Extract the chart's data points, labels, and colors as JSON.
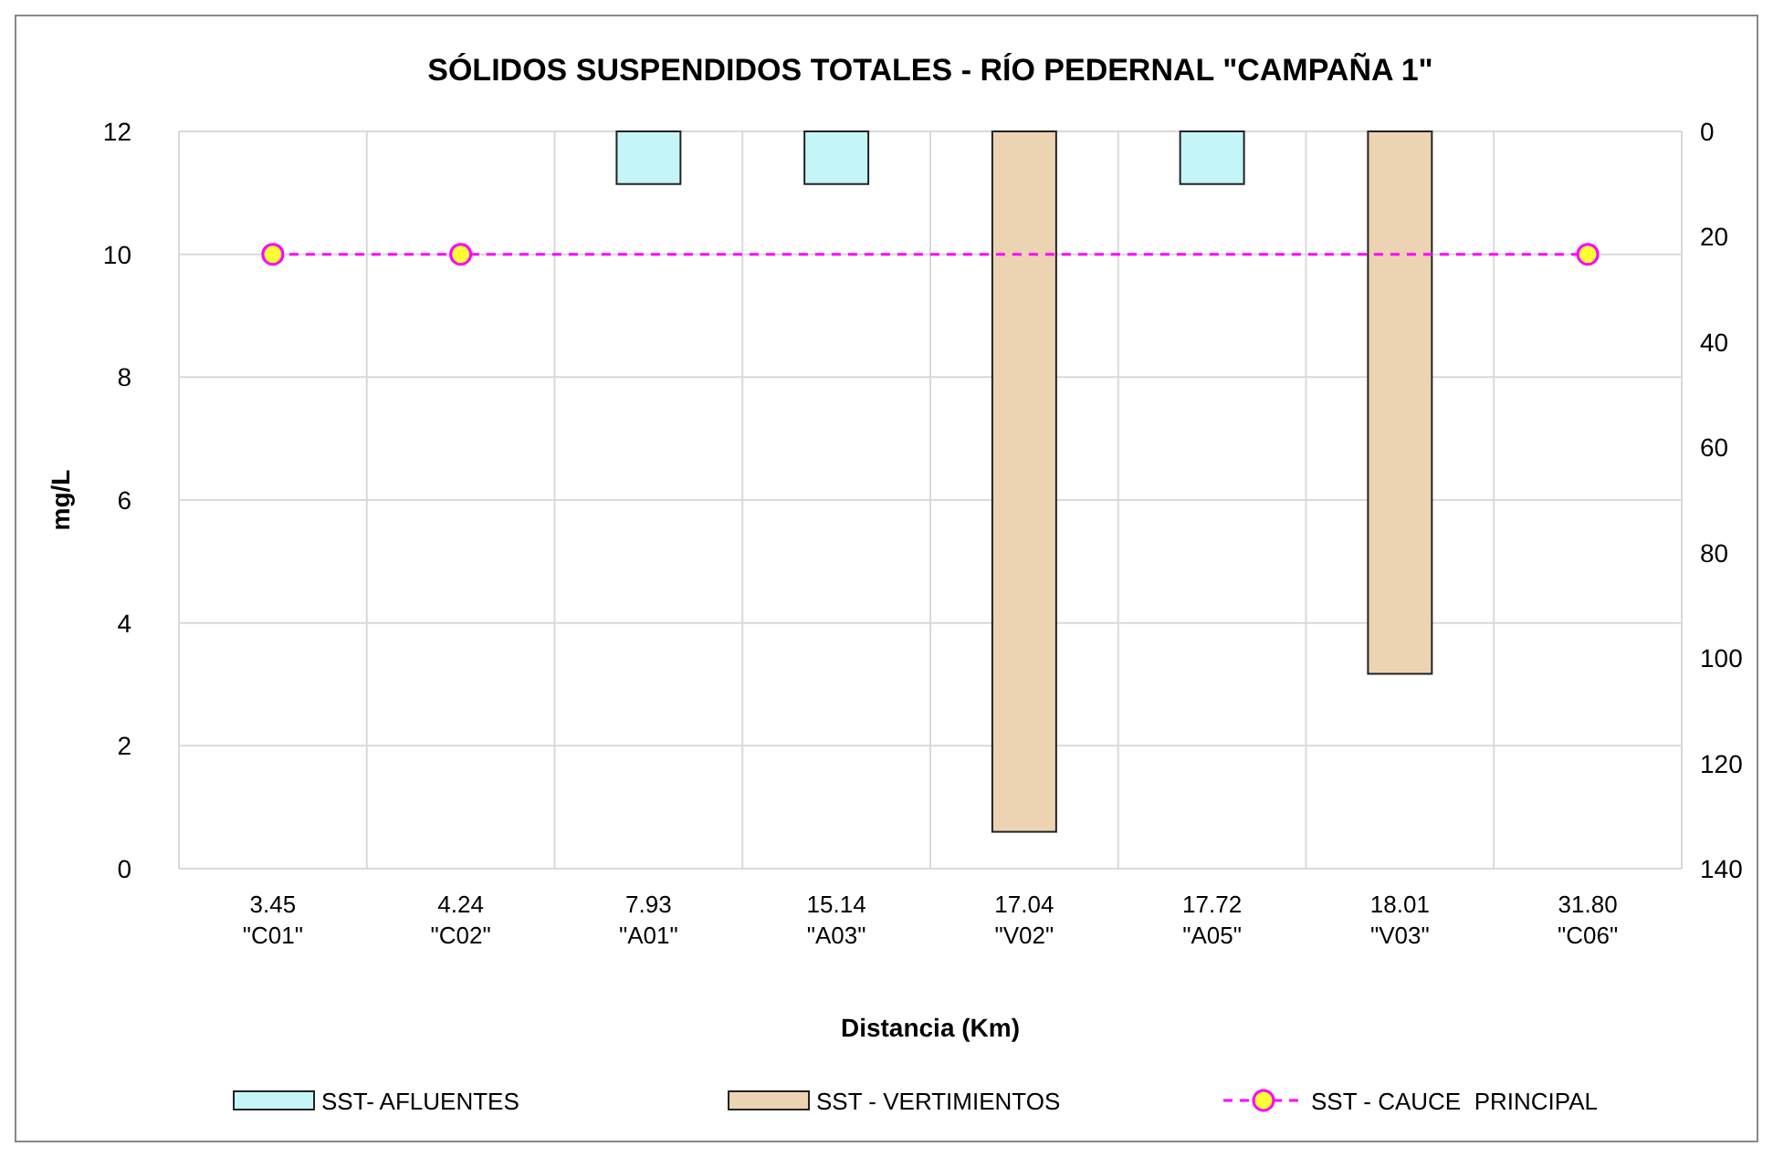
{
  "chart_data": {
    "type": "bar",
    "title": "SÓLIDOS SUSPENDIDOS TOTALES - RÍO PEDERNAL \"CAMPAÑA 1\"",
    "xlabel": "Distancia (Km)",
    "ylabel": "mg/L",
    "categories": [
      "3.45\n\"C01\"",
      "4.24\n\"C02\"",
      "7.93\n\"A01\"",
      "15.14\n\"A03\"",
      "17.04\n\"V02\"",
      "17.72\n\"A05\"",
      "18.01\n\"V03\"",
      "31.80\n\"C06\""
    ],
    "series": [
      {
        "name": "SST- AFLUENTES",
        "axis": "y2",
        "color": "#c4f6f8",
        "values": [
          null,
          null,
          10,
          10,
          null,
          10,
          null,
          null
        ]
      },
      {
        "name": "SST - VERTIMIENTOS",
        "axis": "y2",
        "color": "#ecd3b2",
        "values": [
          null,
          null,
          null,
          null,
          133,
          null,
          103,
          null
        ]
      },
      {
        "name": "SST - CAUCE  PRINCIPAL",
        "type": "line",
        "color": "#ff00ff",
        "line_style": "dashed",
        "marker": "circle",
        "values": [
          10,
          10,
          null,
          null,
          null,
          null,
          null,
          10
        ]
      }
    ],
    "ylim": [
      0,
      12
    ],
    "yticks": [
      0,
      2,
      4,
      6,
      8,
      10,
      12
    ],
    "y2lim": [
      140,
      0
    ],
    "y2ticks": [
      0,
      20,
      40,
      60,
      80,
      100,
      120,
      140
    ],
    "grid": true,
    "legend": "bottom"
  }
}
